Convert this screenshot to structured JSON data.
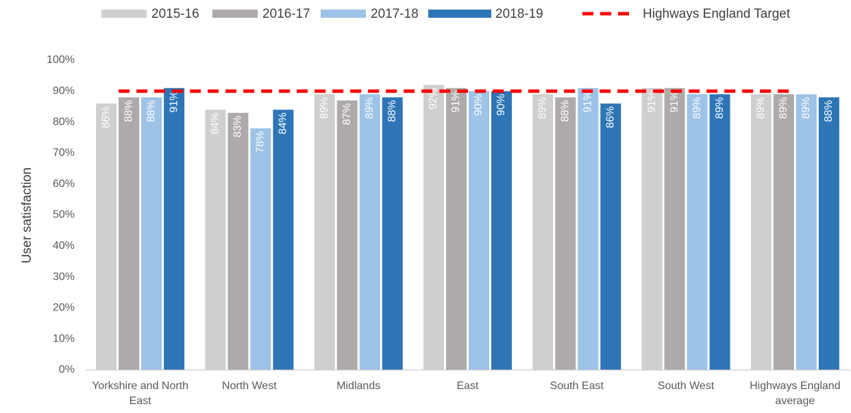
{
  "chart_data": {
    "type": "bar",
    "y_label": "User satisfaction",
    "categories": [
      "Yorkshire and North East",
      "North West",
      "Midlands",
      "East",
      "South East",
      "South West",
      "Highways England average"
    ],
    "series": [
      {
        "name": "2015-16",
        "color": "#d0cece",
        "values": [
          86,
          84,
          89,
          92,
          89,
          91,
          89
        ],
        "value_labels": [
          "86%",
          "84%",
          "89%",
          "92%",
          "89%",
          "91%",
          "89%"
        ]
      },
      {
        "name": "2016-17",
        "color": "#aeaaaa",
        "values": [
          88,
          83,
          87,
          91,
          88,
          91,
          89
        ],
        "value_labels": [
          "88%",
          "83%",
          "87%",
          "91%",
          "88%",
          "91%",
          "89%"
        ]
      },
      {
        "name": "2017-18",
        "color": "#9dc3e6",
        "values": [
          88,
          78,
          89,
          90,
          91,
          89,
          89
        ],
        "value_labels": [
          "88%",
          "78%",
          "89%",
          "90%",
          "91%",
          "89%",
          "89%"
        ]
      },
      {
        "name": "2018-19",
        "color": "#2e75b6",
        "values": [
          91,
          84,
          88,
          90,
          86,
          89,
          88
        ],
        "value_labels": [
          "91%",
          "84%",
          "88%",
          "90%",
          "86%",
          "89%",
          "88%"
        ]
      }
    ],
    "target": {
      "name": "Highways England Target",
      "value": 90,
      "color": "#ff0000"
    },
    "ylim": [
      0,
      100
    ],
    "yticks": [
      {
        "value": 0,
        "label": "0%"
      },
      {
        "value": 10,
        "label": "10%"
      },
      {
        "value": 20,
        "label": "20%"
      },
      {
        "value": 30,
        "label": "30%"
      },
      {
        "value": 40,
        "label": "40%"
      },
      {
        "value": 50,
        "label": "50%"
      },
      {
        "value": 60,
        "label": "60%"
      },
      {
        "value": 70,
        "label": "70%"
      },
      {
        "value": 80,
        "label": "80%"
      },
      {
        "value": 90,
        "label": "90%"
      },
      {
        "value": 100,
        "label": "100%"
      }
    ],
    "grid": false,
    "legend": "top"
  }
}
